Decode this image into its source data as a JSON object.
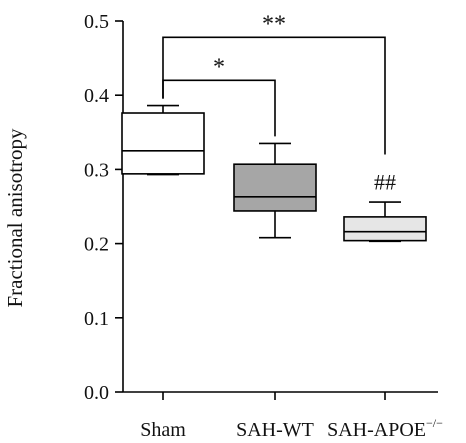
{
  "chart_data": {
    "type": "box",
    "title": "",
    "xlabel": "",
    "ylabel": "Fractional anisotropy",
    "ylim": [
      0.0,
      0.5
    ],
    "yticks": [
      "0.0",
      "0.1",
      "0.2",
      "0.3",
      "0.4",
      "0.5"
    ],
    "ytick_values": [
      0.0,
      0.1,
      0.2,
      0.3,
      0.4,
      0.5
    ],
    "categories": [
      {
        "label": "Sham",
        "sup": ""
      },
      {
        "label": "SAH-WT",
        "sup": ""
      },
      {
        "label": "SAH-APOE",
        "sup": "−/−"
      }
    ],
    "boxes": [
      {
        "name": "Sham",
        "min": 0.293,
        "q1": 0.294,
        "median": 0.325,
        "q3": 0.376,
        "max": 0.386,
        "fill": "#ffffff"
      },
      {
        "name": "SAH-WT",
        "min": 0.208,
        "q1": 0.244,
        "median": 0.263,
        "q3": 0.307,
        "max": 0.335,
        "fill": "#a6a6a6"
      },
      {
        "name": "SAH-APOE−/−",
        "min": 0.203,
        "q1": 0.204,
        "median": 0.216,
        "q3": 0.236,
        "max": 0.256,
        "fill": "#e6e6e6"
      }
    ],
    "significance": [
      {
        "from": 0,
        "to": 1,
        "label": "*",
        "level": 0.42
      },
      {
        "from": 0,
        "to": 2,
        "label": "**",
        "level": 0.478
      }
    ],
    "annotations": [
      {
        "category": 2,
        "label": "##",
        "y": 0.27
      }
    ],
    "grid": false,
    "legend": "none"
  }
}
